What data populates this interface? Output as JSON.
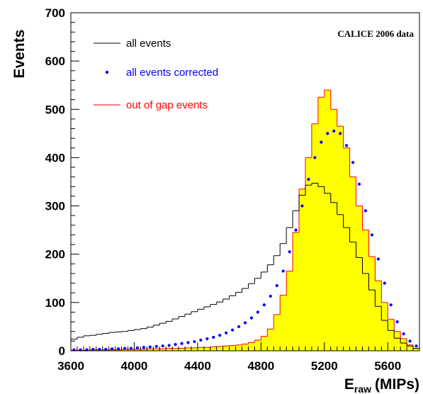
{
  "chart_data": {
    "type": "line",
    "annotation": "CALICE 2006 data",
    "ylabel": "Events",
    "xlabel_main": "E",
    "xlabel_sub": "raw",
    "xlabel_unit": "(MIPs)",
    "xlim": [
      3600,
      5800
    ],
    "ylim": [
      0,
      700
    ],
    "x_ticks": [
      3600,
      4000,
      4400,
      4800,
      5200,
      5600
    ],
    "y_ticks": [
      0,
      100,
      200,
      300,
      400,
      500,
      600,
      700
    ],
    "bin_width": 40,
    "grid": false,
    "legend_position": "top-left",
    "series": [
      {
        "name": "all events",
        "style": "step-line",
        "color": "#000000",
        "x": [
          3600,
          3640,
          3680,
          3720,
          3760,
          3800,
          3840,
          3880,
          3920,
          3960,
          4000,
          4040,
          4080,
          4120,
          4160,
          4200,
          4240,
          4280,
          4320,
          4360,
          4400,
          4440,
          4480,
          4520,
          4560,
          4600,
          4640,
          4680,
          4720,
          4760,
          4800,
          4840,
          4880,
          4920,
          4960,
          5000,
          5040,
          5080,
          5120,
          5160,
          5200,
          5240,
          5280,
          5320,
          5360,
          5400,
          5440,
          5480,
          5520,
          5560,
          5600,
          5640,
          5680,
          5720,
          5760
        ],
        "values": [
          24,
          28,
          31,
          32,
          34,
          36,
          38,
          39,
          40,
          42,
          44,
          46,
          49,
          53,
          57,
          61,
          66,
          71,
          76,
          81,
          86,
          91,
          96,
          101,
          107,
          114,
          121,
          129,
          139,
          150,
          163,
          178,
          197,
          222,
          255,
          290,
          322,
          343,
          347,
          340,
          326,
          307,
          282,
          255,
          225,
          193,
          160,
          126,
          92,
          63,
          42,
          26,
          16,
          10,
          5
        ]
      },
      {
        "name": "all events corrected",
        "style": "markers",
        "color": "#0000ff",
        "x": [
          3620,
          3660,
          3700,
          3740,
          3780,
          3820,
          3860,
          3900,
          3940,
          3980,
          4020,
          4060,
          4100,
          4140,
          4180,
          4220,
          4260,
          4300,
          4340,
          4380,
          4420,
          4460,
          4500,
          4540,
          4580,
          4620,
          4660,
          4700,
          4740,
          4780,
          4820,
          4860,
          4900,
          4940,
          4980,
          5020,
          5060,
          5100,
          5140,
          5180,
          5220,
          5260,
          5300,
          5340,
          5380,
          5420,
          5460,
          5500,
          5540,
          5580,
          5620,
          5660,
          5700,
          5740,
          5780
        ],
        "values": [
          2,
          2,
          2,
          3,
          3,
          3,
          4,
          4,
          5,
          5,
          6,
          7,
          8,
          9,
          10,
          11,
          13,
          15,
          17,
          19,
          22,
          25,
          28,
          32,
          37,
          43,
          50,
          58,
          68,
          80,
          95,
          113,
          135,
          165,
          205,
          250,
          300,
          355,
          400,
          432,
          450,
          455,
          450,
          425,
          390,
          345,
          290,
          240,
          190,
          140,
          95,
          60,
          35,
          20,
          10
        ]
      },
      {
        "name": "out of gap events",
        "style": "filled-step",
        "color": "#ff0000",
        "fill": "#ffff00",
        "x": [
          3600,
          3640,
          3680,
          3720,
          3760,
          3800,
          3840,
          3880,
          3920,
          3960,
          4000,
          4040,
          4080,
          4120,
          4160,
          4200,
          4240,
          4280,
          4320,
          4360,
          4400,
          4440,
          4480,
          4520,
          4560,
          4600,
          4640,
          4680,
          4720,
          4760,
          4800,
          4840,
          4880,
          4920,
          4960,
          5000,
          5040,
          5080,
          5120,
          5160,
          5200,
          5240,
          5280,
          5320,
          5360,
          5400,
          5440,
          5480,
          5520,
          5560,
          5600,
          5640,
          5680,
          5720,
          5760
        ],
        "values": [
          1,
          1,
          1,
          2,
          2,
          2,
          2,
          2,
          3,
          3,
          3,
          3,
          4,
          4,
          4,
          5,
          5,
          5,
          6,
          6,
          7,
          7,
          8,
          9,
          10,
          11,
          12,
          14,
          17,
          22,
          30,
          45,
          75,
          115,
          165,
          245,
          335,
          400,
          470,
          525,
          540,
          500,
          465,
          420,
          360,
          300,
          250,
          195,
          145,
          100,
          65,
          40,
          25,
          12,
          5
        ]
      }
    ]
  }
}
